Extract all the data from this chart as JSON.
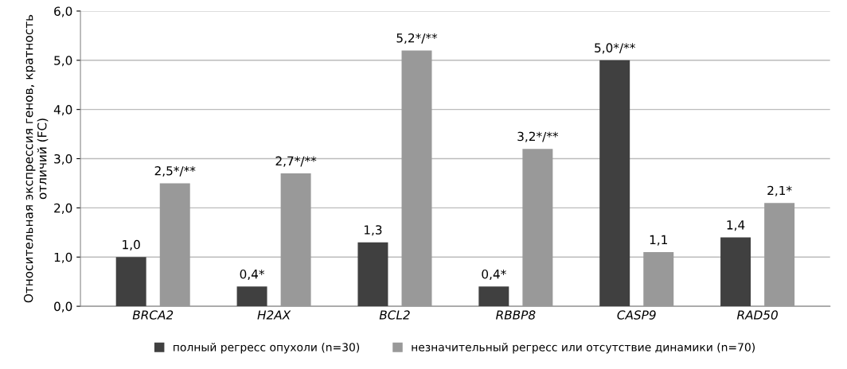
{
  "chart_data": {
    "type": "bar",
    "ylabel": "Относительная экспрессия генов, кратность\nотличий (FC)",
    "categories": [
      "BRCA2",
      "H2AX",
      "BCL2",
      "RBBP8",
      "CASP9",
      "RAD50"
    ],
    "series": [
      {
        "name": "полный регресс опухоли (n=30)",
        "color": "#404040",
        "values": [
          1.0,
          0.4,
          1.3,
          0.4,
          5.0,
          1.4
        ],
        "value_labels": [
          "1,0",
          "0,4*",
          "1,3",
          "0,4*",
          "5,0*/**",
          "1,4"
        ]
      },
      {
        "name": "незначительный регресс или отсутствие динамики (n=70)",
        "color": "#999999",
        "values": [
          2.5,
          2.7,
          5.2,
          3.2,
          1.1,
          2.1
        ],
        "value_labels": [
          "2,5*/**",
          "2,7*/**",
          "5,2*/**",
          "3,2*/**",
          "1,1",
          "2,1*"
        ]
      }
    ],
    "ylim": [
      0,
      6
    ],
    "yticks": [
      {
        "value": 0,
        "label": "0,0"
      },
      {
        "value": 1,
        "label": "1,0"
      },
      {
        "value": 2,
        "label": "2,0"
      },
      {
        "value": 3,
        "label": "3,0"
      },
      {
        "value": 4,
        "label": "4,0"
      },
      {
        "value": 5,
        "label": "5,0"
      },
      {
        "value": 6,
        "label": "6,0"
      }
    ],
    "grid": "y",
    "legend": "bottom"
  }
}
